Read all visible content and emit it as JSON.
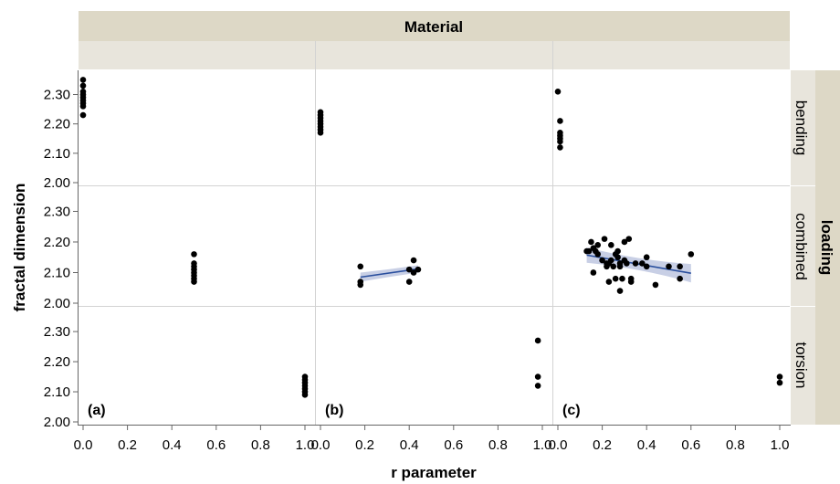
{
  "chart_data": {
    "type": "scatter",
    "header": "Material",
    "column_labels": [
      "",
      "",
      ""
    ],
    "row_group_label": "loading",
    "row_labels": [
      "bending",
      "combined",
      "torsion"
    ],
    "xlabel": "r parameter",
    "ylabel": "fractal dimension",
    "xlim": [
      0,
      1.0
    ],
    "ylim": [
      2.0,
      2.37
    ],
    "x_ticks": [
      0.0,
      0.2,
      0.4,
      0.6,
      0.8,
      1.0
    ],
    "x_tick_labels": [
      "0.0",
      "0.2",
      "0.4",
      "0.6",
      "0.8",
      "1.0"
    ],
    "y_ticks": [
      2.0,
      2.1,
      2.2,
      2.3
    ],
    "y_tick_labels": [
      "2.00",
      "2.10",
      "2.20",
      "2.30"
    ],
    "panel_labels": [
      "(a)",
      "(b)",
      "(c)"
    ],
    "colors": {
      "point": "#000000",
      "fit_line": "#2a4f9e",
      "confidence_band": "#b5bfdc",
      "header_bg": "#ddd8c6",
      "subheader_bg": "#e8e5dc",
      "grid": "#d3d3d3"
    },
    "cells": [
      {
        "col": 0,
        "row": 0,
        "points": [
          [
            0,
            2.35
          ],
          [
            0,
            2.33
          ],
          [
            0,
            2.31
          ],
          [
            0,
            2.3
          ],
          [
            0,
            2.29
          ],
          [
            0,
            2.28
          ],
          [
            0,
            2.27
          ],
          [
            0,
            2.26
          ],
          [
            0,
            2.23
          ]
        ]
      },
      {
        "col": 0,
        "row": 1,
        "points": [
          [
            0.5,
            2.16
          ],
          [
            0.5,
            2.13
          ],
          [
            0.5,
            2.12
          ],
          [
            0.5,
            2.11
          ],
          [
            0.5,
            2.1
          ],
          [
            0.5,
            2.09
          ],
          [
            0.5,
            2.08
          ],
          [
            0.5,
            2.07
          ]
        ]
      },
      {
        "col": 0,
        "row": 2,
        "points": [
          [
            1.0,
            2.15
          ],
          [
            1.0,
            2.14
          ],
          [
            1.0,
            2.13
          ],
          [
            1.0,
            2.12
          ],
          [
            1.0,
            2.11
          ],
          [
            1.0,
            2.1
          ],
          [
            1.0,
            2.09
          ]
        ]
      },
      {
        "col": 1,
        "row": 0,
        "points": [
          [
            0,
            2.24
          ],
          [
            0,
            2.23
          ],
          [
            0,
            2.22
          ],
          [
            0,
            2.21
          ],
          [
            0,
            2.2
          ],
          [
            0,
            2.19
          ],
          [
            0,
            2.18
          ],
          [
            0,
            2.17
          ]
        ]
      },
      {
        "col": 1,
        "row": 1,
        "points": [
          [
            0.18,
            2.12
          ],
          [
            0.18,
            2.07
          ],
          [
            0.18,
            2.06
          ],
          [
            0.4,
            2.11
          ],
          [
            0.4,
            2.07
          ],
          [
            0.42,
            2.14
          ],
          [
            0.42,
            2.1
          ],
          [
            0.44,
            2.11
          ]
        ],
        "fit": {
          "x": [
            0.18,
            0.44
          ],
          "y": [
            2.085,
            2.112
          ],
          "band_halfwidth": [
            0.015,
            0.012
          ]
        }
      },
      {
        "col": 1,
        "row": 2,
        "points": [
          [
            0.98,
            2.27
          ],
          [
            0.98,
            2.15
          ],
          [
            0.98,
            2.12
          ]
        ]
      },
      {
        "col": 2,
        "row": 0,
        "points": [
          [
            0,
            2.31
          ],
          [
            0.01,
            2.21
          ],
          [
            0.01,
            2.17
          ],
          [
            0.01,
            2.16
          ],
          [
            0.01,
            2.15
          ],
          [
            0.01,
            2.14
          ],
          [
            0.01,
            2.12
          ]
        ]
      },
      {
        "col": 2,
        "row": 1,
        "points": [
          [
            0.14,
            2.17
          ],
          [
            0.15,
            2.2
          ],
          [
            0.16,
            2.18
          ],
          [
            0.16,
            2.1
          ],
          [
            0.17,
            2.17
          ],
          [
            0.18,
            2.16
          ],
          [
            0.18,
            2.19
          ],
          [
            0.2,
            2.14
          ],
          [
            0.21,
            2.21
          ],
          [
            0.22,
            2.13
          ],
          [
            0.22,
            2.12
          ],
          [
            0.23,
            2.13
          ],
          [
            0.23,
            2.07
          ],
          [
            0.24,
            2.19
          ],
          [
            0.24,
            2.14
          ],
          [
            0.25,
            2.12
          ],
          [
            0.26,
            2.16
          ],
          [
            0.26,
            2.08
          ],
          [
            0.27,
            2.17
          ],
          [
            0.27,
            2.15
          ],
          [
            0.28,
            2.13
          ],
          [
            0.28,
            2.12
          ],
          [
            0.28,
            2.04
          ],
          [
            0.29,
            2.08
          ],
          [
            0.3,
            2.14
          ],
          [
            0.3,
            2.2
          ],
          [
            0.31,
            2.13
          ],
          [
            0.32,
            2.21
          ],
          [
            0.33,
            2.08
          ],
          [
            0.33,
            2.07
          ],
          [
            0.35,
            2.13
          ],
          [
            0.38,
            2.13
          ],
          [
            0.4,
            2.12
          ],
          [
            0.4,
            2.15
          ],
          [
            0.44,
            2.06
          ],
          [
            0.5,
            2.12
          ],
          [
            0.55,
            2.12
          ],
          [
            0.55,
            2.08
          ],
          [
            0.6,
            2.16
          ],
          [
            0.13,
            2.17
          ]
        ],
        "fit": {
          "x": [
            0.13,
            0.6
          ],
          "y": [
            2.157,
            2.098
          ],
          "band_halfwidth": [
            0.025,
            0.03
          ]
        }
      },
      {
        "col": 2,
        "row": 2,
        "points": [
          [
            1.0,
            2.15
          ],
          [
            1.0,
            2.13
          ]
        ]
      }
    ]
  }
}
